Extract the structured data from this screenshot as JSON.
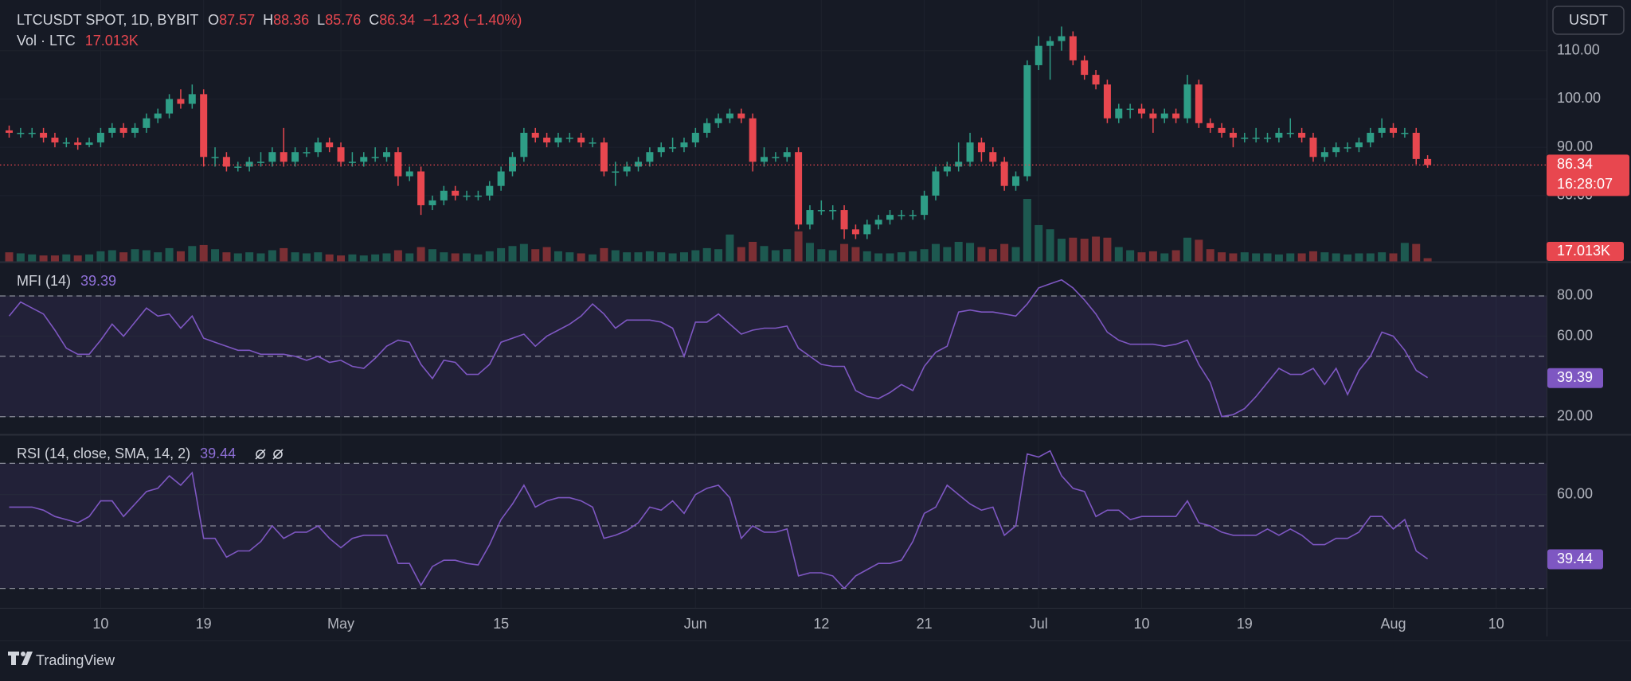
{
  "chart_data": [
    {
      "type": "candlestick",
      "title": "LTCUSDT SPOT, 1D, BYBIT",
      "ohlc_labels": [
        "O",
        "H",
        "L",
        "C"
      ],
      "change_label": "−1.23 (−1.40%)",
      "countdown": "16:28:07",
      "up_color": "#2e9d86",
      "down_color": "#e8474f",
      "volume_up_color": "#1d5950",
      "volume_down_color": "#7b2f34",
      "xlim": [
        -0.8,
        134.4
      ],
      "xticks": [
        {
          "value": 8,
          "label": "10"
        },
        {
          "value": 17,
          "label": "19"
        },
        {
          "value": 29,
          "label": "May"
        },
        {
          "value": 43,
          "label": "15"
        },
        {
          "value": 60,
          "label": "Jun"
        },
        {
          "value": 71,
          "label": "12"
        },
        {
          "value": 80,
          "label": "21"
        },
        {
          "value": 90,
          "label": "Jul"
        },
        {
          "value": 99,
          "label": "10"
        },
        {
          "value": 108,
          "label": "19"
        },
        {
          "value": 121,
          "label": "Aug"
        },
        {
          "value": 130,
          "label": "10"
        }
      ],
      "ylim": [
        66.3,
        120.5
      ],
      "yticks": [
        {
          "value": 80,
          "label": "80.00"
        },
        {
          "value": 90,
          "label": "90.00"
        },
        {
          "value": 100,
          "label": "100.00"
        },
        {
          "value": 110,
          "label": "110.00"
        }
      ],
      "grid": true,
      "open": [
        93.5,
        93,
        93,
        93,
        92,
        91,
        91,
        90.5,
        91,
        93,
        94,
        93,
        94,
        96,
        97,
        100,
        99,
        101,
        88,
        88,
        86,
        86,
        87,
        87,
        89,
        87,
        89,
        89,
        91,
        90,
        87,
        87,
        88,
        88,
        89,
        84,
        85,
        78,
        79,
        81,
        80,
        80,
        80,
        82,
        85,
        88,
        93,
        92,
        91,
        92,
        92,
        91,
        91,
        85,
        85,
        86,
        87,
        89,
        90,
        90,
        91,
        93,
        95,
        96,
        97,
        96,
        87,
        88,
        88,
        89,
        74,
        77,
        77,
        77,
        73,
        72,
        74,
        75,
        76,
        76,
        76,
        80,
        85,
        86,
        87,
        91,
        89,
        87,
        82,
        84,
        107,
        111,
        112,
        113,
        108,
        105,
        103,
        96,
        98,
        98,
        97,
        96,
        97,
        96,
        103,
        95,
        94,
        93,
        92,
        92,
        92,
        92,
        93,
        93,
        92,
        88,
        89,
        90,
        90,
        91,
        93,
        94,
        93,
        93,
        87.57
      ],
      "high": [
        94.5,
        94,
        94,
        94,
        93,
        92,
        92,
        92,
        94,
        95,
        95,
        95,
        97,
        98,
        101,
        102,
        103,
        102,
        90,
        89,
        87,
        88,
        89,
        90,
        94,
        90,
        90,
        92,
        92,
        91,
        89,
        89,
        90,
        90,
        90,
        86,
        86,
        80,
        82,
        82,
        81,
        81,
        83,
        86,
        89,
        94,
        94,
        93,
        93,
        93,
        93,
        92,
        92,
        87,
        87,
        88,
        90,
        91,
        92,
        92,
        94,
        96,
        97,
        98,
        98,
        97,
        90,
        89,
        90,
        90,
        78,
        79,
        78,
        78,
        74,
        75,
        76,
        77,
        77,
        77,
        81,
        86,
        87,
        91,
        93,
        92,
        90,
        88,
        85,
        108,
        113,
        113,
        115,
        114,
        109,
        106,
        104,
        99,
        99,
        99,
        98,
        98,
        98,
        105,
        104,
        96,
        95,
        94,
        93,
        94,
        93,
        94,
        96,
        94,
        93,
        90,
        91,
        91,
        92,
        94,
        96,
        95,
        94,
        94,
        88.36
      ],
      "low": [
        92,
        92,
        92,
        91,
        90,
        90,
        89.5,
        90,
        90,
        92,
        92,
        92,
        93,
        95,
        96,
        98,
        98,
        86,
        86,
        85,
        85,
        85,
        86,
        86,
        86,
        86,
        88,
        88,
        89,
        86,
        86,
        86,
        87,
        87,
        82,
        83,
        76,
        77,
        78,
        79,
        79,
        79,
        79,
        81,
        84,
        87,
        91,
        90,
        90,
        91,
        90,
        90,
        84,
        82,
        84,
        85,
        86,
        88,
        89,
        89,
        90,
        92,
        94,
        95,
        95,
        85,
        86,
        87,
        87,
        73,
        73,
        76,
        75,
        71,
        71,
        71,
        73,
        74,
        75,
        75,
        75,
        79,
        84,
        85,
        86,
        87,
        86,
        81,
        81,
        83,
        106,
        104,
        110,
        107,
        104,
        102,
        95,
        95,
        96,
        96,
        93,
        95,
        95,
        95,
        94,
        93,
        92,
        90,
        91,
        91,
        91,
        91,
        92,
        91,
        87,
        87,
        88,
        89,
        89,
        90,
        92,
        92,
        92,
        86.5,
        85.76
      ],
      "close": [
        93,
        93,
        93,
        92,
        91,
        91,
        90.5,
        91,
        93,
        94,
        93,
        94,
        96,
        97,
        100,
        99,
        101,
        88,
        88,
        86,
        86,
        87,
        87,
        89,
        87,
        89,
        89,
        91,
        90,
        87,
        87,
        88,
        88,
        89,
        84,
        85,
        78,
        79,
        81,
        80,
        80,
        80,
        82,
        85,
        88,
        93,
        92,
        91,
        92,
        92,
        91,
        91,
        85,
        85,
        86,
        87,
        89,
        90,
        90,
        91,
        93,
        95,
        96,
        97,
        96,
        87,
        88,
        88,
        89,
        74,
        77,
        77,
        77,
        73,
        72,
        74,
        75,
        76,
        76,
        76,
        80,
        85,
        86,
        87,
        91,
        89,
        87,
        82,
        84,
        107,
        111,
        112,
        113,
        108,
        105,
        103,
        96,
        98,
        98,
        97,
        96,
        97,
        96,
        103,
        95,
        94,
        93,
        92,
        92,
        92,
        92,
        93,
        93,
        92,
        88,
        89,
        90,
        90,
        91,
        93,
        94,
        93,
        93,
        87.57,
        86.34
      ],
      "volume": {
        "name": "Vol · LTC",
        "last_label": "17.013K",
        "ylim": [
          0,
          1250
        ],
        "values": [
          45,
          40,
          35,
          30,
          30,
          35,
          30,
          35,
          50,
          55,
          45,
          60,
          55,
          45,
          65,
          50,
          75,
          80,
          60,
          45,
          40,
          45,
          40,
          55,
          65,
          45,
          40,
          45,
          35,
          30,
          35,
          30,
          35,
          40,
          55,
          40,
          70,
          60,
          45,
          40,
          40,
          35,
          50,
          65,
          75,
          85,
          60,
          70,
          50,
          45,
          40,
          35,
          65,
          55,
          45,
          45,
          50,
          45,
          40,
          45,
          55,
          65,
          60,
          130,
          70,
          95,
          75,
          55,
          60,
          145,
          90,
          60,
          55,
          85,
          70,
          50,
          40,
          40,
          45,
          50,
          60,
          85,
          70,
          95,
          90,
          70,
          60,
          85,
          70,
          300,
          175,
          155,
          110,
          115,
          110,
          120,
          115,
          70,
          55,
          45,
          50,
          40,
          55,
          115,
          105,
          60,
          45,
          40,
          45,
          40,
          40,
          35,
          40,
          40,
          50,
          45,
          40,
          35,
          40,
          40,
          45,
          40,
          90,
          85,
          17.013
        ]
      }
    },
    {
      "type": "line",
      "title": "MFI (14)",
      "color": "#7e57c2",
      "ylim": [
        11.2,
        96.6
      ],
      "levels": [
        80,
        50,
        20
      ],
      "yticks": [
        {
          "value": 20,
          "label": "20.00"
        },
        {
          "value": 60,
          "label": "60.00"
        },
        {
          "value": 80,
          "label": "80.00"
        }
      ],
      "values": [
        70,
        77,
        74,
        71,
        63,
        54,
        51,
        51,
        58,
        66,
        60,
        67,
        74,
        70,
        71,
        64,
        70,
        59,
        57,
        55,
        53,
        53,
        51,
        51,
        51,
        50,
        48,
        50,
        47,
        48,
        45,
        44,
        49,
        55,
        58,
        57,
        46,
        39,
        48,
        47,
        41,
        41,
        46,
        57,
        59,
        61,
        55,
        60,
        63,
        66,
        70,
        76,
        71,
        64,
        68,
        68,
        68,
        67,
        64,
        50,
        67,
        67,
        71,
        66,
        61,
        63,
        64,
        64,
        65,
        54,
        50,
        46,
        45,
        45,
        33,
        30,
        29,
        32,
        36,
        33,
        45,
        52,
        55,
        72,
        73,
        72,
        72,
        71,
        70,
        76,
        84,
        86,
        88,
        84,
        78,
        71,
        62,
        58,
        56,
        56,
        56,
        55,
        56,
        58,
        46,
        37,
        20,
        21,
        24,
        30,
        37,
        44,
        41,
        41,
        44,
        36,
        44,
        31,
        43,
        50,
        62,
        60,
        53,
        43,
        39.39
      ]
    },
    {
      "type": "line",
      "title": "RSI (14, close, SMA, 14, 2)",
      "color": "#7e57c2",
      "ylim": [
        23.8,
        79
      ],
      "levels": [
        70,
        50,
        30
      ],
      "yticks": [
        {
          "value": 60,
          "label": "60.00"
        }
      ],
      "values": [
        56,
        56,
        56,
        55,
        53,
        52,
        51,
        53,
        58,
        58,
        53,
        57,
        61,
        62,
        66,
        63,
        67,
        46,
        46,
        40,
        42,
        42,
        45,
        50,
        46,
        48,
        48,
        50,
        46,
        43,
        46,
        47,
        47,
        47,
        38,
        38,
        31,
        37,
        39,
        39,
        38,
        37.5,
        44,
        52,
        57,
        63,
        56,
        58,
        59,
        59,
        58,
        56,
        46,
        47,
        48.5,
        51,
        56,
        55,
        58,
        54,
        60,
        62,
        63,
        59,
        46,
        50,
        48,
        48,
        49,
        34,
        35,
        35,
        34,
        30,
        34,
        36,
        38,
        38,
        39,
        45,
        54,
        56,
        63,
        60,
        57,
        55,
        56,
        47,
        50,
        73,
        72,
        74,
        66,
        62,
        61,
        53,
        55,
        55,
        52,
        53,
        53,
        53,
        53,
        58,
        51,
        50,
        48,
        47,
        47,
        47,
        49,
        47,
        49,
        47,
        44,
        44,
        46,
        46,
        48,
        53,
        53,
        49,
        52,
        42,
        39.44
      ]
    }
  ],
  "currency": "USDT",
  "footer": "TradingView"
}
